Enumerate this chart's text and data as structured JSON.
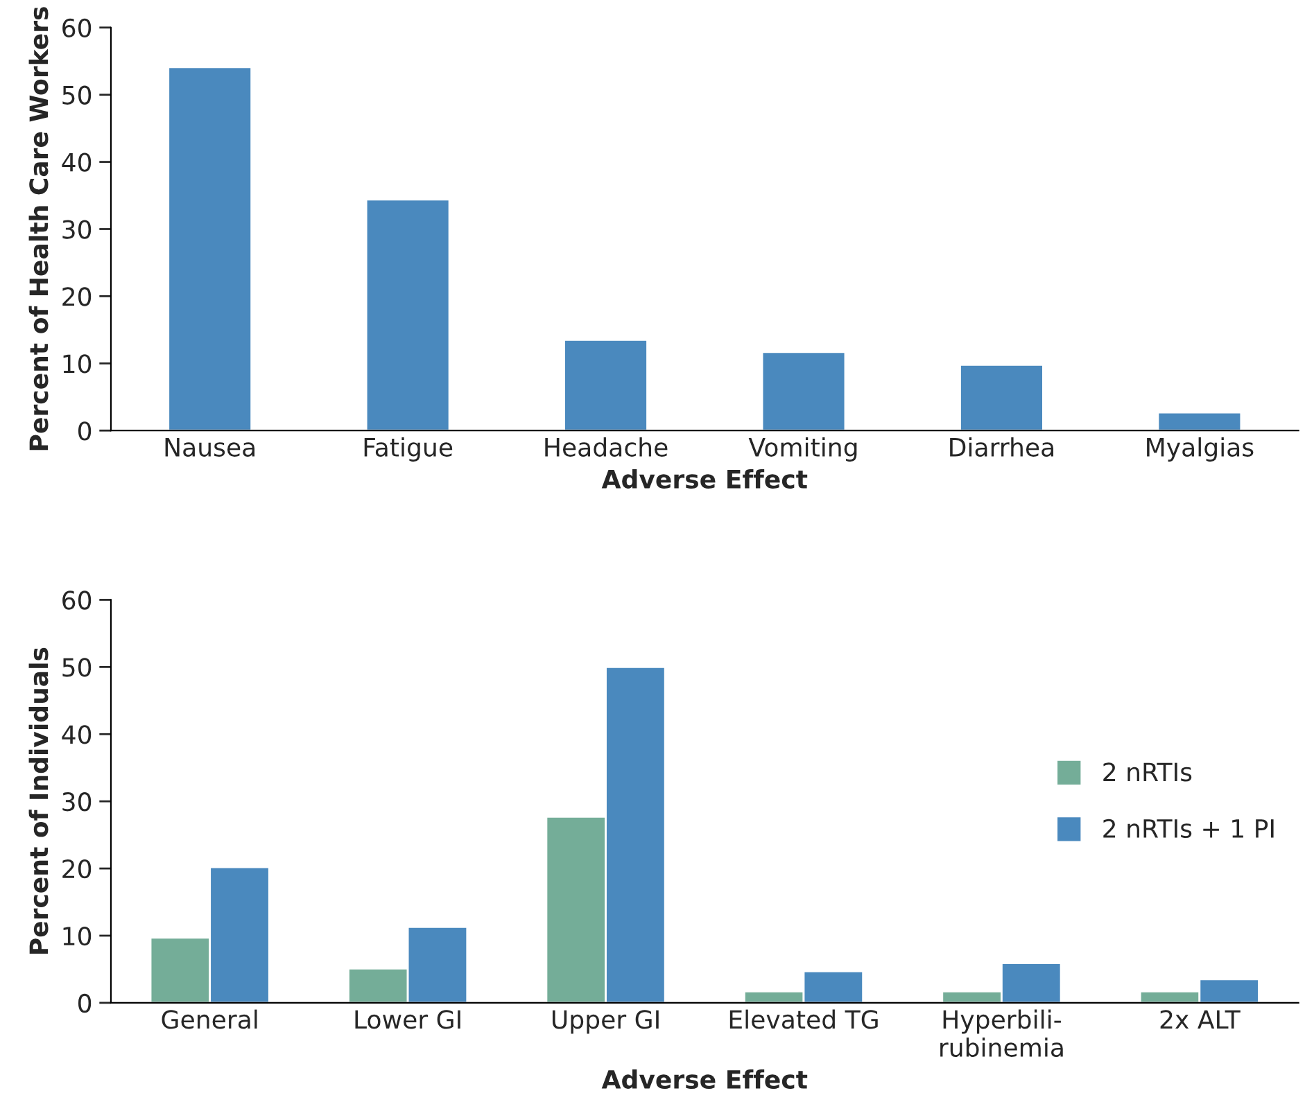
{
  "chart_data": [
    {
      "type": "bar",
      "xlabel": "Adverse Effect",
      "ylabel": "Percent of Health Care Workers",
      "categories": [
        "Nausea",
        "Fatigue",
        "Headache",
        "Vomiting",
        "Diarrhea",
        "Myalgias"
      ],
      "series": [
        {
          "color": "#4a89be",
          "values": [
            54.1,
            34.4,
            13.5,
            11.7,
            9.8,
            2.7
          ]
        }
      ],
      "ylim": [
        0,
        60
      ],
      "yticks": [
        0,
        10,
        20,
        30,
        40,
        50,
        60
      ],
      "grid": false,
      "legend": false
    },
    {
      "type": "bar",
      "xlabel": "Adverse Effect",
      "ylabel": "Percent of Individuals",
      "categories": [
        "General",
        "Lower GI",
        "Upper GI",
        "Elevated TG",
        "Hyperbili-\nrubinemia",
        "2x ALT"
      ],
      "series": [
        {
          "name": "2 nRTIs",
          "color": "#74ad98",
          "values": [
            9.7,
            5.1,
            27.7,
            1.7,
            1.7,
            1.7
          ]
        },
        {
          "name": "2 nRTIs + 1 PI",
          "color": "#4a89be",
          "values": [
            20.2,
            11.3,
            50,
            4.7,
            5.9,
            3.5
          ]
        }
      ],
      "ylim": [
        0,
        60
      ],
      "yticks": [
        0,
        10,
        20,
        30,
        40,
        50,
        60
      ],
      "grid": false,
      "legend": "right"
    }
  ]
}
